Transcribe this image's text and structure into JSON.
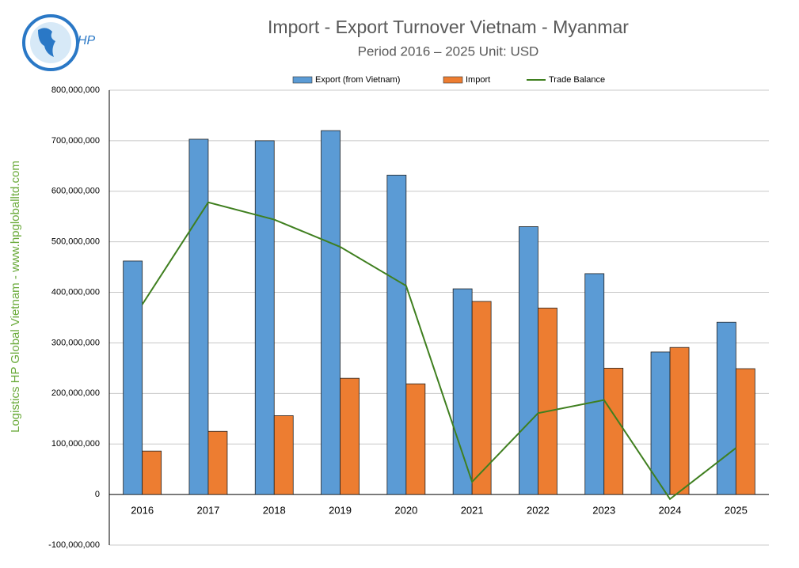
{
  "chart_data": {
    "type": "bar",
    "title": "Import - Export Turnover Vietnam - Myanmar",
    "subtitle": "Period 2016 – 2025  Unit: USD",
    "side_text": "Logistics HP Global Vietnam - www.hpgloballtd.com",
    "logo_text": "HP",
    "categories": [
      "2016",
      "2017",
      "2018",
      "2019",
      "2020",
      "2021",
      "2022",
      "2023",
      "2024",
      "2025"
    ],
    "series": [
      {
        "name": "Export (from Vietnam)",
        "type": "bar",
        "color": "#5b9bd5",
        "values": [
          462000000,
          703000000,
          700000000,
          720000000,
          632000000,
          407000000,
          530000000,
          437000000,
          282000000,
          341000000
        ]
      },
      {
        "name": "Import",
        "type": "bar",
        "color": "#ed7d31",
        "values": [
          86000000,
          125000000,
          156000000,
          230000000,
          219000000,
          382000000,
          369000000,
          250000000,
          291000000,
          249000000
        ]
      },
      {
        "name": "Trade Balance",
        "type": "line",
        "color": "#3f7f1f",
        "values": [
          376000000,
          578000000,
          544000000,
          490000000,
          413000000,
          25000000,
          161000000,
          187000000,
          -9000000,
          92000000
        ]
      }
    ],
    "ylim": [
      -100000000,
      800000000
    ],
    "yticks": [
      {
        "value": -100000000,
        "label": "-100,000,000"
      },
      0,
      {
        "value": 100000000,
        "label": "100,000,000"
      },
      {
        "value": 200000000,
        "label": "200,000,000"
      },
      {
        "value": 300000000,
        "label": "300,000,000"
      },
      {
        "value": 400000000,
        "label": "400,000,000"
      },
      {
        "value": 500000000,
        "label": "500,000,000"
      },
      {
        "value": 600000000,
        "label": "600,000,000"
      },
      {
        "value": 700000000,
        "label": "700,000,000"
      },
      {
        "value": 800000000,
        "label": "800,000,000"
      }
    ],
    "grid": true,
    "legend": "top"
  }
}
